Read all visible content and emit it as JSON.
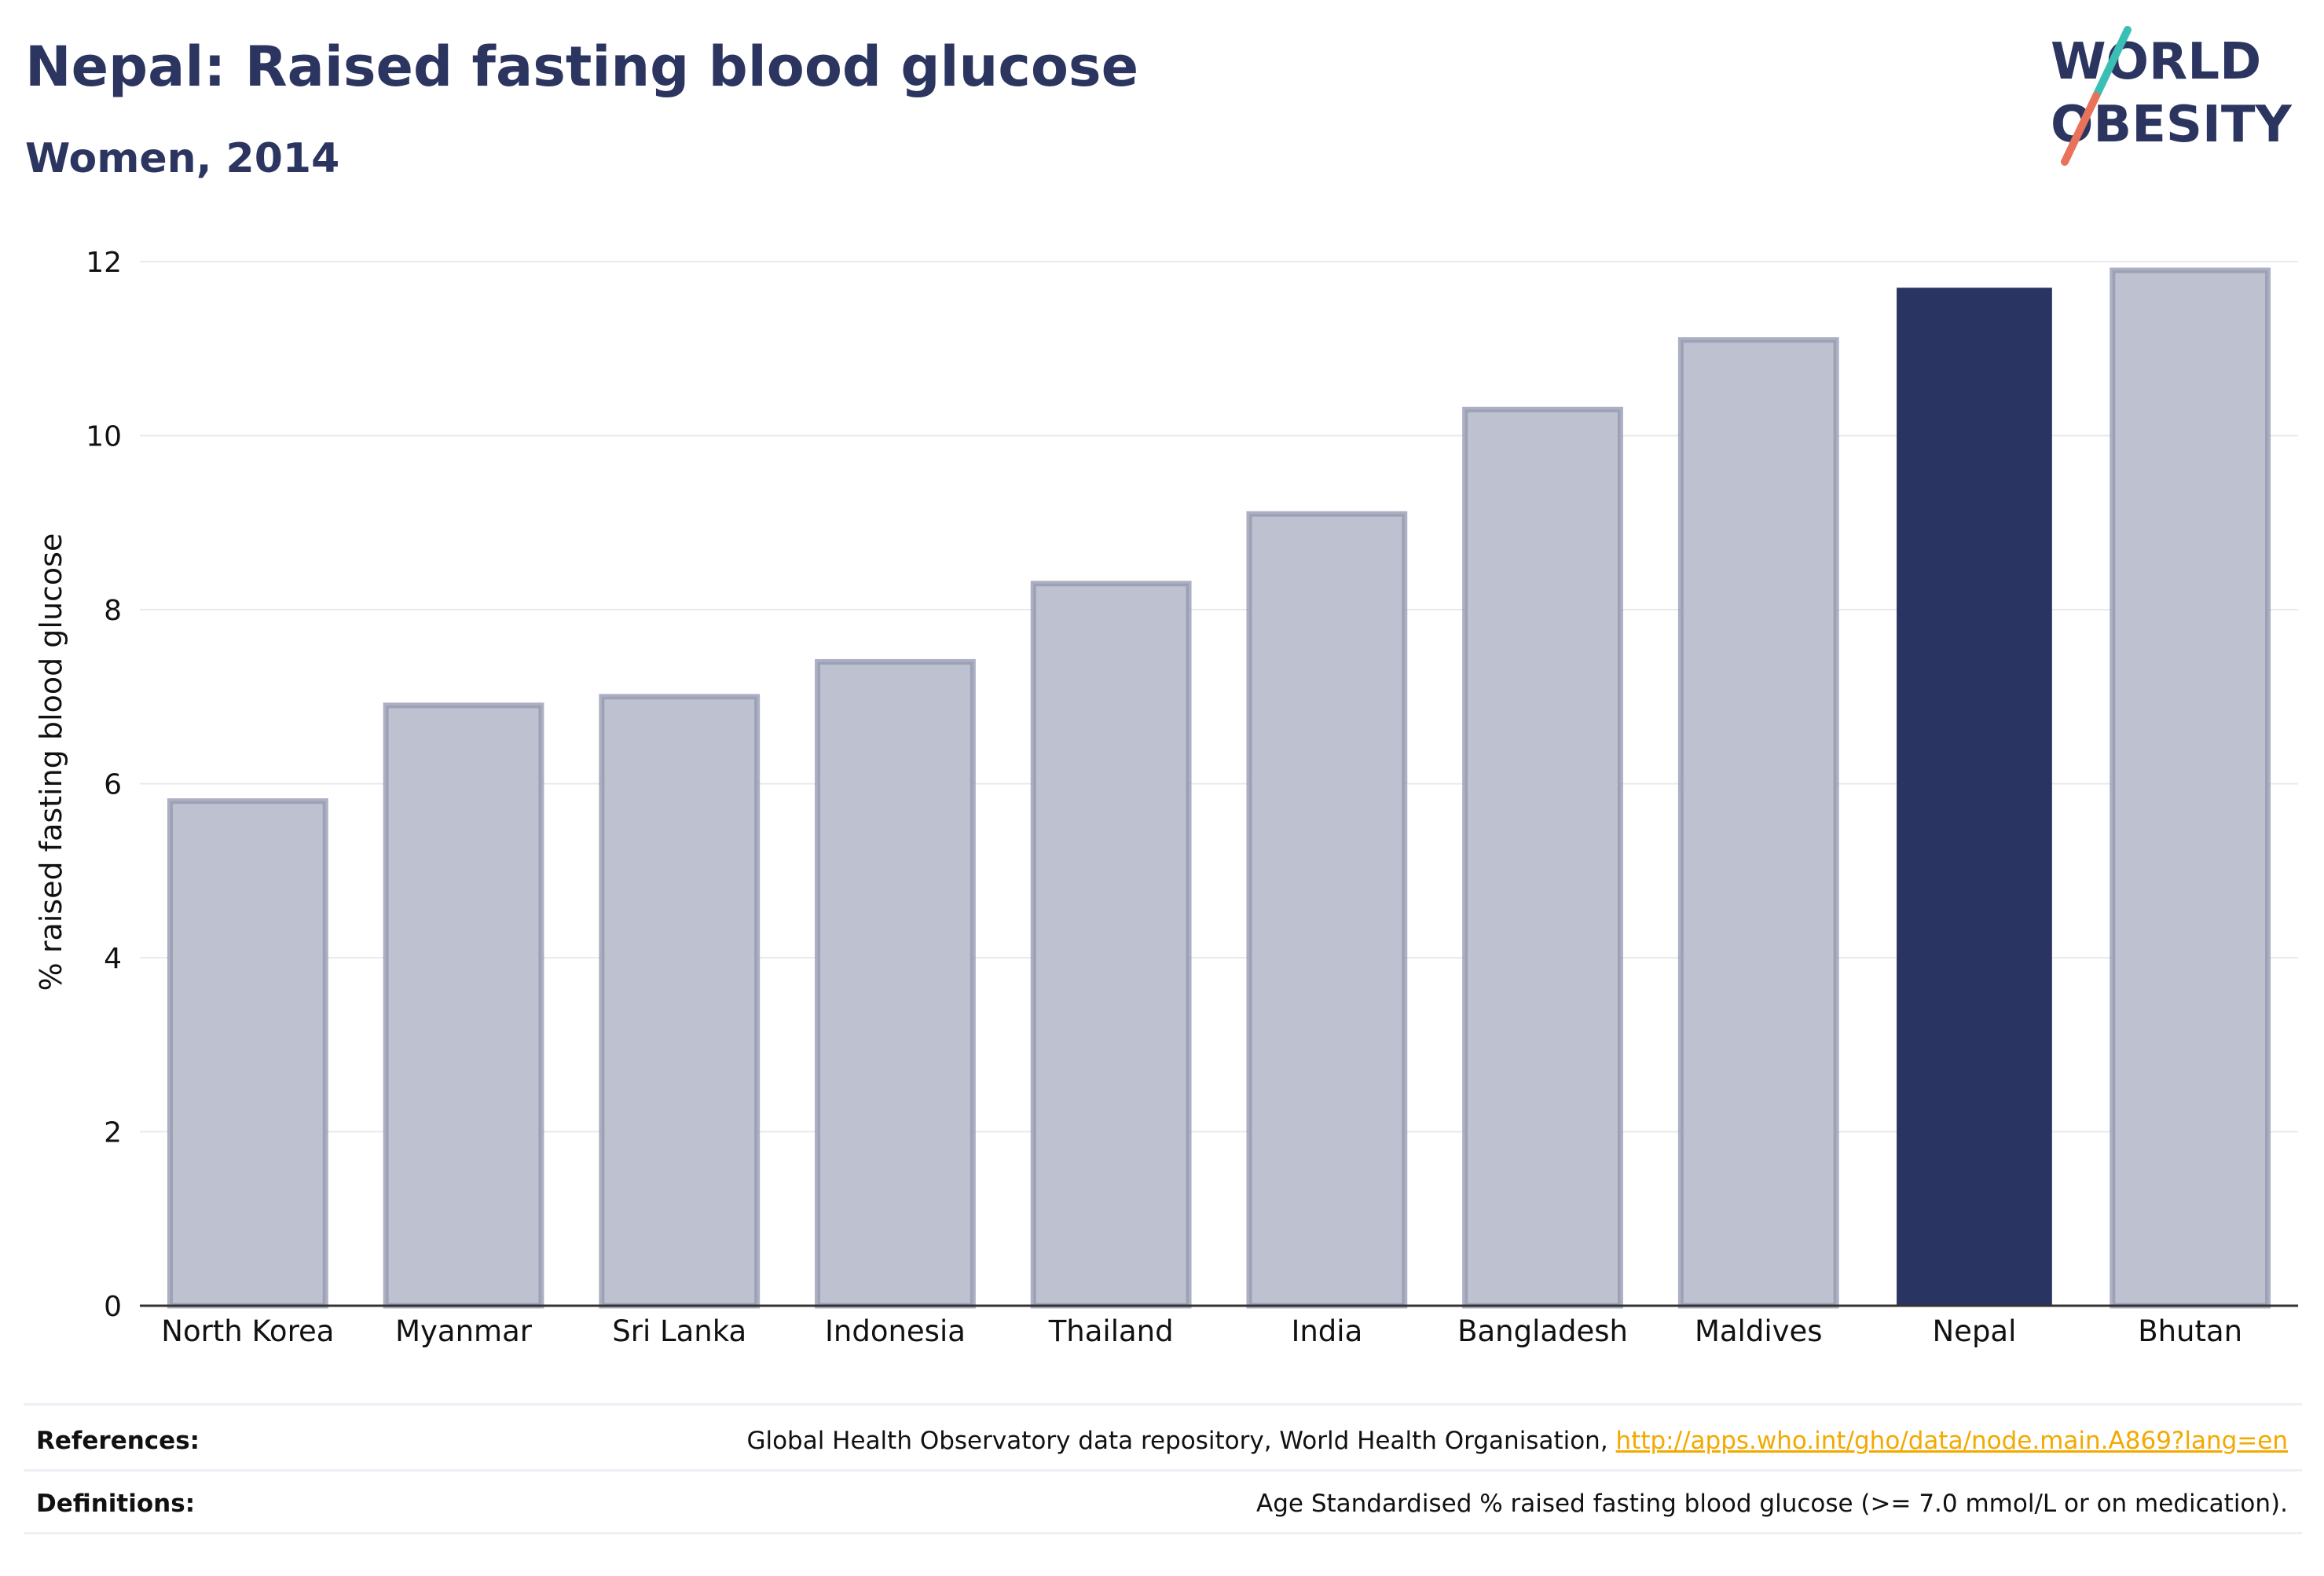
{
  "header": {
    "title": "Nepal: Raised fasting blood glucose",
    "subtitle": "Women, 2014"
  },
  "logo": {
    "line1": "WORLD",
    "line2": "OBESITY"
  },
  "chart_data": {
    "type": "bar",
    "title": "Nepal: Raised fasting blood glucose",
    "subtitle": "Women, 2014",
    "xlabel": "",
    "ylabel": "% raised fasting blood glucose",
    "categories": [
      "North Korea",
      "Myanmar",
      "Sri Lanka",
      "Indonesia",
      "Thailand",
      "India",
      "Bangladesh",
      "Maldives",
      "Nepal",
      "Bhutan"
    ],
    "values": [
      5.8,
      6.9,
      7.0,
      7.4,
      8.3,
      9.1,
      10.3,
      11.1,
      11.7,
      11.9
    ],
    "highlight": "Nepal",
    "ylim": [
      0,
      12
    ],
    "yticks": [
      0,
      2,
      4,
      6,
      8,
      10,
      12
    ],
    "grid": true,
    "legend": "none",
    "colors": {
      "highlight": "#293462",
      "other_fill": "#bec1cf",
      "other_edge": "#9096ae",
      "grid": "#e9eaee",
      "axis": "#333333"
    }
  },
  "footer": {
    "references_label": "References:",
    "references_text": "Global Health Observatory data repository, World Health Organisation, ",
    "references_link": "http://apps.who.int/gho/data/node.main.A869?lang=en",
    "definitions_label": "Definitions:",
    "definitions_text": "Age Standardised % raised fasting blood glucose (>= 7.0 mmol/L or on medication)."
  }
}
